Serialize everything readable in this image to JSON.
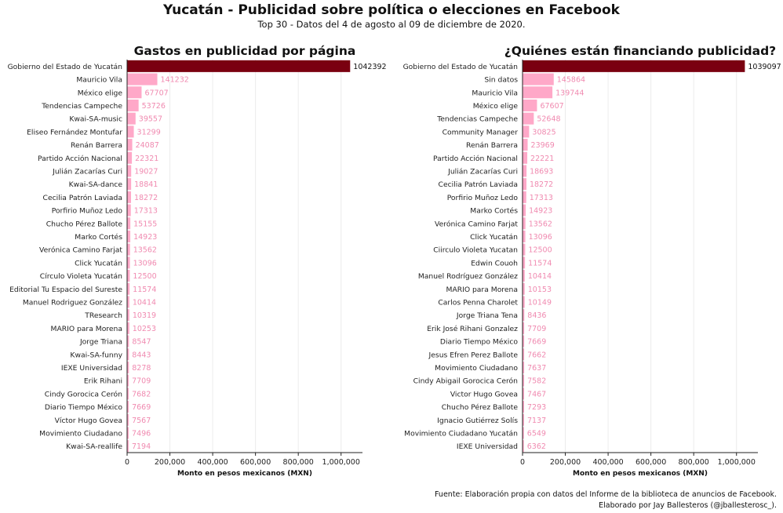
{
  "title": "Yucatán - Publicidad sobre política o elecciones en Facebook",
  "subtitle": "Top 30 - Datos del 4 de agosto al 09 de diciembre de 2020.",
  "footer": {
    "line1": "Fuente: Elaboración propia con datos del Informe de la biblioteca de anuncios de Facebook.",
    "line2": "Elaborado por Jay Ballesteros (@jballesterosc_)."
  },
  "colors": {
    "highlight": "#7a0010",
    "bar": "#ffa8c8",
    "label_highlight": "#111111",
    "label": "#f08ab0",
    "grid": "#ececec"
  },
  "chart_data": [
    {
      "type": "bar",
      "orientation": "horizontal",
      "title": "Gastos en publicidad por página",
      "xlabel": "Monto en pesos mexicanos (MXN)",
      "ylabel": "",
      "xlim": [
        0,
        1100000
      ],
      "xticks": [
        0,
        200000,
        400000,
        600000,
        800000,
        1000000
      ],
      "xtick_labels": [
        "0",
        "200,000",
        "400,000",
        "600,000",
        "800,000",
        "1,000,000"
      ],
      "grid": "vertical",
      "categories": [
        "Gobierno del Estado de Yucatán",
        "Mauricio Vila",
        "México elige",
        "Tendencias Campeche",
        "Kwai-SA-music",
        "Eliseo Fernández Montufar",
        "Renán Barrera",
        "Partido Acción Nacional",
        "Julián Zacarías Curi",
        "Kwai-SA-dance",
        "Cecilia Patrón Laviada",
        "Porfirio Muñoz Ledo",
        "Chucho Pérez Ballote",
        "Marko Cortés",
        "Verónica Camino Farjat",
        "Click Yucatán",
        "Círculo Violeta Yucatán",
        "Editorial Tu Espacio del Sureste",
        "Manuel Rodriguez González",
        "TResearch",
        "MARIO para Morena",
        "Jorge Triana",
        "Kwai-SA-funny",
        "IEXE Universidad",
        "Erik Rihani",
        "Cindy Gorocica Cerón",
        "Diario Tiempo México",
        "Víctor Hugo Govea",
        "Movimiento Ciudadano",
        "Kwai-SA-reallife"
      ],
      "values": [
        1042392,
        141232,
        67707,
        53726,
        39557,
        31299,
        24087,
        22321,
        19027,
        18841,
        18272,
        17313,
        15155,
        14923,
        13562,
        13096,
        12500,
        11574,
        10414,
        10319,
        10253,
        8547,
        8443,
        8278,
        7709,
        7682,
        7669,
        7567,
        7496,
        7194
      ],
      "value_labels": [
        "1042392",
        "141232",
        "67707",
        "53726",
        "39557",
        "31299",
        "24087",
        "22321",
        "19027",
        "18841",
        "18272",
        "17313",
        "15155",
        "14923",
        "13562",
        "13096",
        "12500",
        "11574",
        "10414",
        "10319",
        "10253",
        "8547",
        "8443",
        "8278",
        "7709",
        "7682",
        "7669",
        "7567",
        "7496",
        "7194"
      ]
    },
    {
      "type": "bar",
      "orientation": "horizontal",
      "title": "¿Quiénes están financiando publicidad?",
      "xlabel": "Monto en pesos mexicanos (MXN)",
      "ylabel": "",
      "xlim": [
        0,
        1100000
      ],
      "xticks": [
        0,
        200000,
        400000,
        600000,
        800000,
        1000000
      ],
      "xtick_labels": [
        "0",
        "200,000",
        "400,000",
        "600,000",
        "800,000",
        "1,000,000"
      ],
      "grid": "vertical",
      "categories": [
        "Gobierno del Estado de Yucatán",
        "Sin datos",
        "Mauricio Vila",
        "México elige",
        "Tendencias Campeche",
        "Community Manager",
        "Renán Barrera",
        "Partido Acción Nacional",
        "Julián Zacarías Curi",
        "Cecilia Patrón Laviada",
        "Porfirio Muñoz Ledo",
        "Marko Cortés",
        "Verónica Camino Farjat",
        "Click Yucatán",
        "Ciirculo Violeta Yucatan",
        "Edwin Couoh",
        "Manuel Rodríguez González",
        "MARIO para Morena",
        "Carlos Penna Charolet",
        "Jorge Triana Tena",
        "Erik José Rihani Gonzalez",
        "Diario Tiempo México",
        "Jesus Efren Perez Ballote",
        "Movimiento Ciudadano",
        "Cindy Abigail Gorocica Cerón",
        "Victor Hugo Govea",
        "Chucho Pérez Ballote",
        "Ignacio Gutiérrez Solís",
        "Movimiento Ciudadano Yucatán",
        "IEXE Universidad"
      ],
      "values": [
        1039097,
        145864,
        139744,
        67607,
        52648,
        30825,
        23969,
        22221,
        18693,
        18272,
        17313,
        14923,
        13562,
        13096,
        12500,
        11574,
        10414,
        10153,
        10149,
        8436,
        7709,
        7669,
        7662,
        7637,
        7582,
        7467,
        7293,
        7137,
        6549,
        6362
      ],
      "value_labels": [
        "1039097",
        "145864",
        "139744",
        "67607",
        "52648",
        "30825",
        "23969",
        "22221",
        "18693",
        "18272",
        "17313",
        "14923",
        "13562",
        "13096",
        "12500",
        "11574",
        "10414",
        "10153",
        "10149",
        "8436",
        "7709",
        "7669",
        "7662",
        "7637",
        "7582",
        "7467",
        "7293",
        "7137",
        "6549",
        "6362"
      ]
    }
  ]
}
